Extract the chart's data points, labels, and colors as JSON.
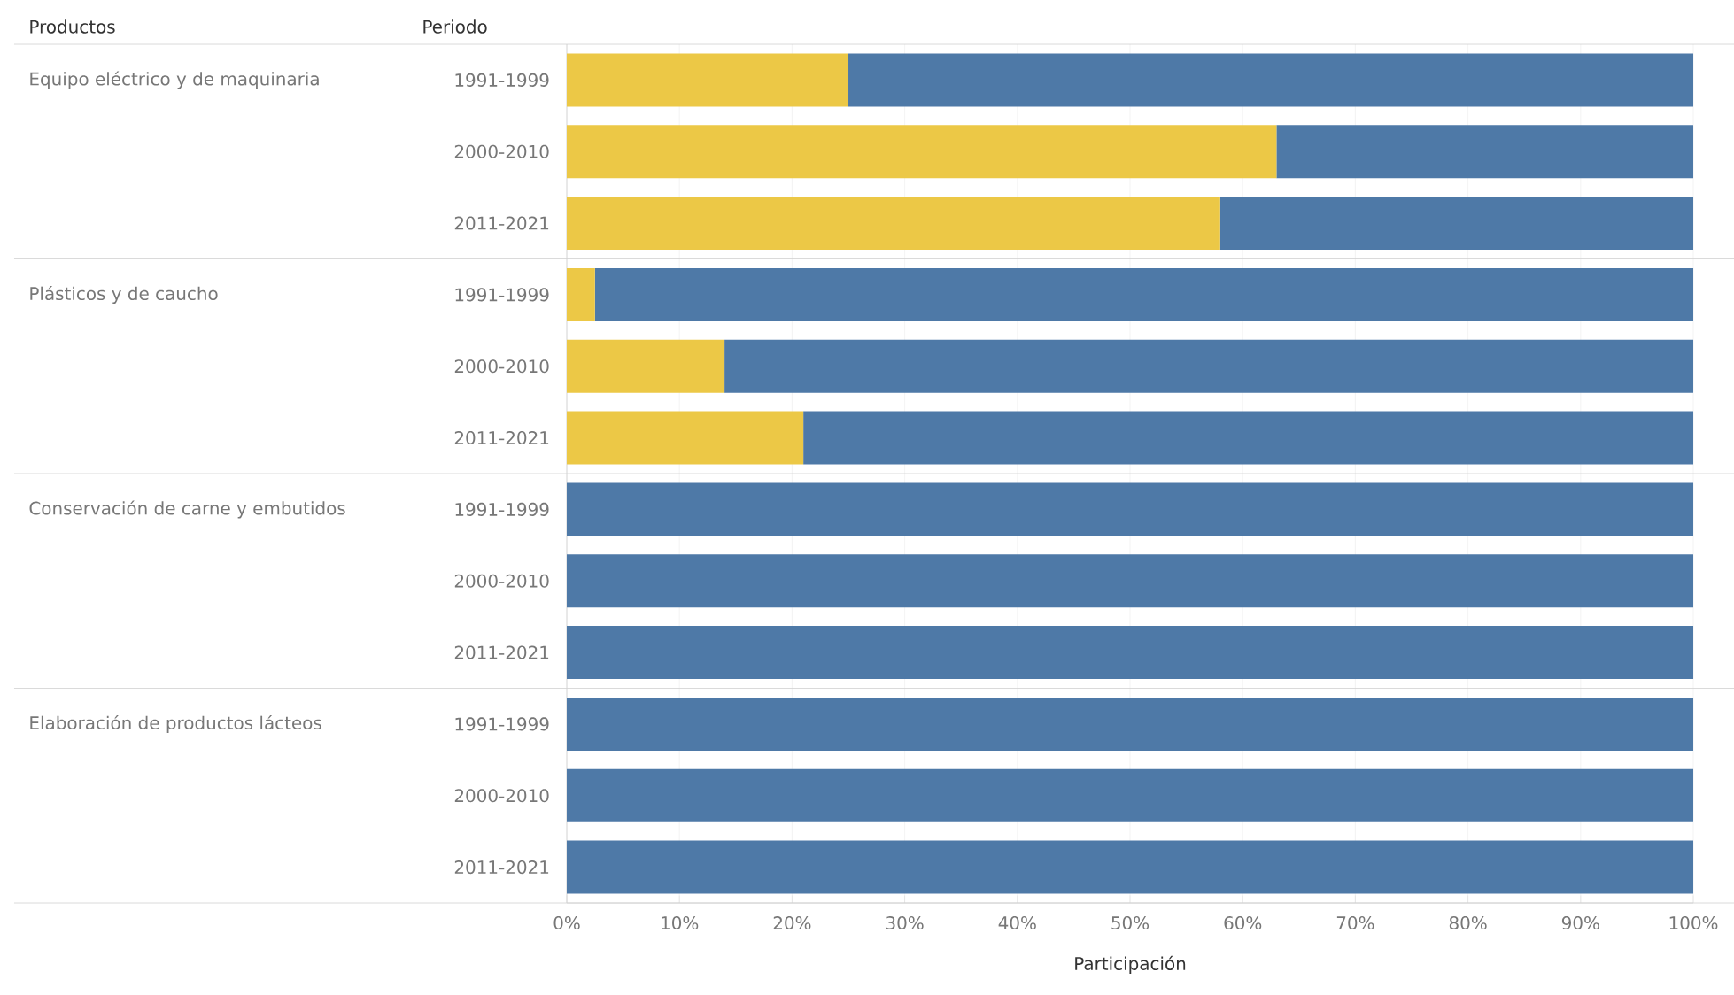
{
  "chart_data": {
    "type": "bar",
    "orientation": "horizontal",
    "stacked": true,
    "categories": [
      "1991-1999",
      "2000-2010",
      "2011-2021",
      "1991-1999",
      "2000-2010",
      "2011-2021",
      "1991-1999",
      "2000-2010",
      "2011-2021",
      "1991-1999",
      "2000-2010",
      "2011-2021"
    ],
    "series": [
      {
        "color": "#ecc846",
        "values": [
          25,
          63,
          58,
          2.5,
          14,
          21,
          0,
          0,
          0,
          0,
          0,
          0
        ]
      },
      {
        "color": "#4e79a7",
        "values": [
          75,
          37,
          42,
          97.5,
          86,
          79,
          100,
          100,
          100,
          100,
          100,
          100
        ]
      }
    ],
    "xlim": [
      0,
      100
    ],
    "xticks": [
      {
        "value": 0,
        "label": "0%"
      },
      {
        "value": 10,
        "label": "10%"
      },
      {
        "value": 20,
        "label": "20%"
      },
      {
        "value": 30,
        "label": "30%"
      },
      {
        "value": 40,
        "label": "40%"
      },
      {
        "value": 50,
        "label": "50%"
      },
      {
        "value": 60,
        "label": "60%"
      },
      {
        "value": 70,
        "label": "70%"
      },
      {
        "value": 80,
        "label": "80%"
      },
      {
        "value": 90,
        "label": "90%"
      },
      {
        "value": 100,
        "label": "100%"
      }
    ],
    "grid": "x",
    "xlabel": "Participación",
    "annotations": [
      "Productos",
      "Periodo",
      "Equipo eléctrico y de maquinaria",
      "Plásticos y de caucho",
      "Conservación de carne y embutidos",
      "Elaboración de productos lácteos"
    ]
  }
}
